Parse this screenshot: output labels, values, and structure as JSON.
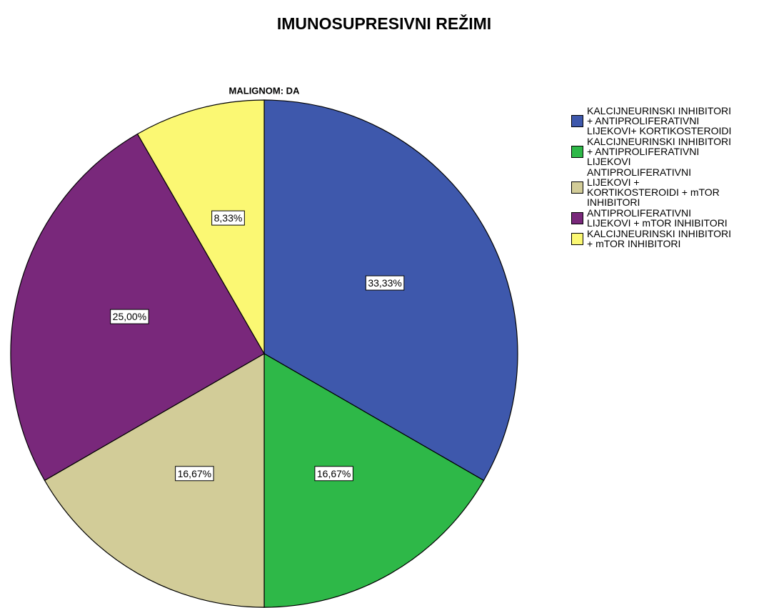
{
  "chart_data": {
    "type": "pie",
    "title": "IMUNOSUPRESIVNI REŽIMI",
    "subtitle": "MALIGNOM: DA",
    "categories": [
      "KALCIJNEURINSKI INHIBITORI + ANTIPROLIFERATIVNI LIJEKOVI+ KORTIKOSTEROIDI",
      "KALCIJNEURINSKI INHIBITORI + ANTIPROLIFERATIVNI LIJEKOVI",
      "ANTIPROLIFERATIVNI LIJEKOVI + KORTIKOSTEROIDI + mTOR INHIBITORI",
      "ANTIPROLIFERATIVNI LIJEKOVI + mTOR INHIBITORI",
      "KALCIJNEURINSKI INHIBITORI + mTOR INHIBITORI"
    ],
    "values": [
      33.33,
      16.67,
      16.67,
      25.0,
      8.33
    ],
    "value_labels": [
      "33,33%",
      "16,67%",
      "16,67%",
      "25,00%",
      "8,33%"
    ],
    "colors": [
      "#3e58ac",
      "#2eb848",
      "#d2cc98",
      "#79287b",
      "#fbf873"
    ],
    "legend": "right"
  }
}
